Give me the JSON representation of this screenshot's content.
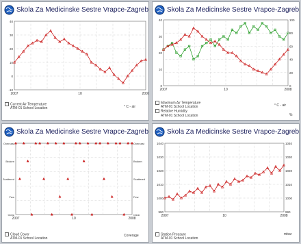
{
  "colors": {
    "temperature": "#cc2222",
    "humidity": "#2ea02e",
    "pressure": "#cc2222",
    "panel_bg": "#ffffff",
    "grid": "#c0c0c0",
    "title": "#1b1f5c"
  },
  "icons": [
    "globe-logo-icon",
    "globe-logo-icon",
    "globe-logo-icon",
    "globe-logo-icon"
  ],
  "panels": [
    {
      "title": "Skola Za Medicinske Sestre Vrapce-Zagreb - Susedgrad,",
      "legend": [
        "Current Air Temperature",
        "ATM-01 School Location"
      ],
      "unit": "° C - air"
    },
    {
      "title": "Skola Za Medicinske Sestre Vrapce-Zagreb - Susedgrad,",
      "legend": [
        "Maximum Air Temperature",
        "ATM-01 School Location"
      ],
      "legend2": [
        "Relative Humidity",
        "ATM-01 School Location"
      ],
      "unit": "° C - air",
      "unit2": "%"
    },
    {
      "title": "Skola Za Medicinske Sestre Vrapce-Zagreb - Susedgrad, HR",
      "legend": [
        "Cloud Cover",
        "ATM-01 School Location"
      ],
      "unit": "Coverage"
    },
    {
      "title": "Skola Za Medicinske Sestre Vrapce-Zagreb - Susedgrad",
      "legend": [
        "Station Pressure",
        "ATM-01 School Location"
      ],
      "unit": "mbar"
    }
  ],
  "chart_data": [
    {
      "type": "line",
      "x_ticks": [
        "2007",
        "",
        "10",
        "",
        "2008"
      ],
      "ylim": [
        -10,
        40
      ],
      "y_ticks": [
        "40",
        "30",
        "20",
        "10",
        "0",
        "-10"
      ],
      "ylabel": "° C - air",
      "series": [
        {
          "name": "Current Air Temperature",
          "values": [
            10,
            14,
            18,
            22,
            24,
            26,
            25,
            30,
            33,
            28,
            25,
            27,
            24,
            22,
            20,
            18,
            16,
            10,
            8,
            5,
            3,
            6,
            1,
            -2,
            -5,
            0,
            4,
            8,
            11,
            12
          ]
        }
      ]
    },
    {
      "type": "line",
      "x_ticks": [
        "2007",
        "",
        "10",
        "",
        "2008"
      ],
      "ylim": [
        0,
        40
      ],
      "y_ticks": [
        "40",
        "30",
        "20",
        "10",
        "0"
      ],
      "ylabel": "° C - air",
      "series": [
        {
          "name": "Maximum Air Temperature",
          "values": [
            22,
            24,
            25,
            26,
            28,
            31,
            30,
            35,
            33,
            30,
            28,
            26,
            27,
            25,
            22,
            20,
            20,
            18,
            15,
            13,
            12,
            10,
            9,
            8,
            7,
            10,
            13,
            16,
            19,
            22
          ]
        },
        {
          "name": "Relative Humidity",
          "values": [
            55,
            60,
            65,
            50,
            45,
            55,
            60,
            40,
            45,
            60,
            65,
            70,
            60,
            70,
            75,
            70,
            85,
            80,
            90,
            95,
            80,
            90,
            85,
            95,
            90,
            80,
            85,
            75,
            70,
            80
          ]
        }
      ],
      "y2lim": [
        0,
        100
      ],
      "y2_ticks": [
        "100",
        "80",
        "60",
        "40",
        "20",
        "0"
      ]
    },
    {
      "type": "scatter",
      "categories": [
        "Overcast",
        "Broken",
        "Scattered",
        "Few",
        "Clear"
      ],
      "x_ticks": [
        "2007",
        "",
        "10",
        "",
        "2008"
      ],
      "values": [
        4,
        2,
        4,
        3,
        0,
        4,
        4,
        2,
        4,
        0,
        4,
        1,
        4,
        2,
        0,
        4,
        4,
        3,
        4,
        0,
        4,
        4,
        2,
        4,
        1,
        4,
        4,
        0,
        4,
        4
      ],
      "ylabel": "Coverage"
    },
    {
      "type": "line",
      "x_ticks": [
        "2007",
        "",
        "10",
        "",
        "2008"
      ],
      "ylim": [
        990,
        1040
      ],
      "y_ticks": [
        "1040",
        "1030",
        "1020",
        "1010",
        "1000",
        "990"
      ],
      "ylabel": "mbar",
      "series": [
        {
          "name": "Station Pressure",
          "values": [
            1000,
            1001,
            999,
            1003,
            1000,
            1002,
            1005,
            1004,
            1007,
            1004,
            1008,
            1009,
            1005,
            1010,
            1008,
            1012,
            1010,
            1014,
            1012,
            1013,
            1016,
            1015,
            1018,
            1017,
            1019,
            1022,
            1018,
            1023,
            1020,
            1024
          ]
        }
      ]
    }
  ]
}
